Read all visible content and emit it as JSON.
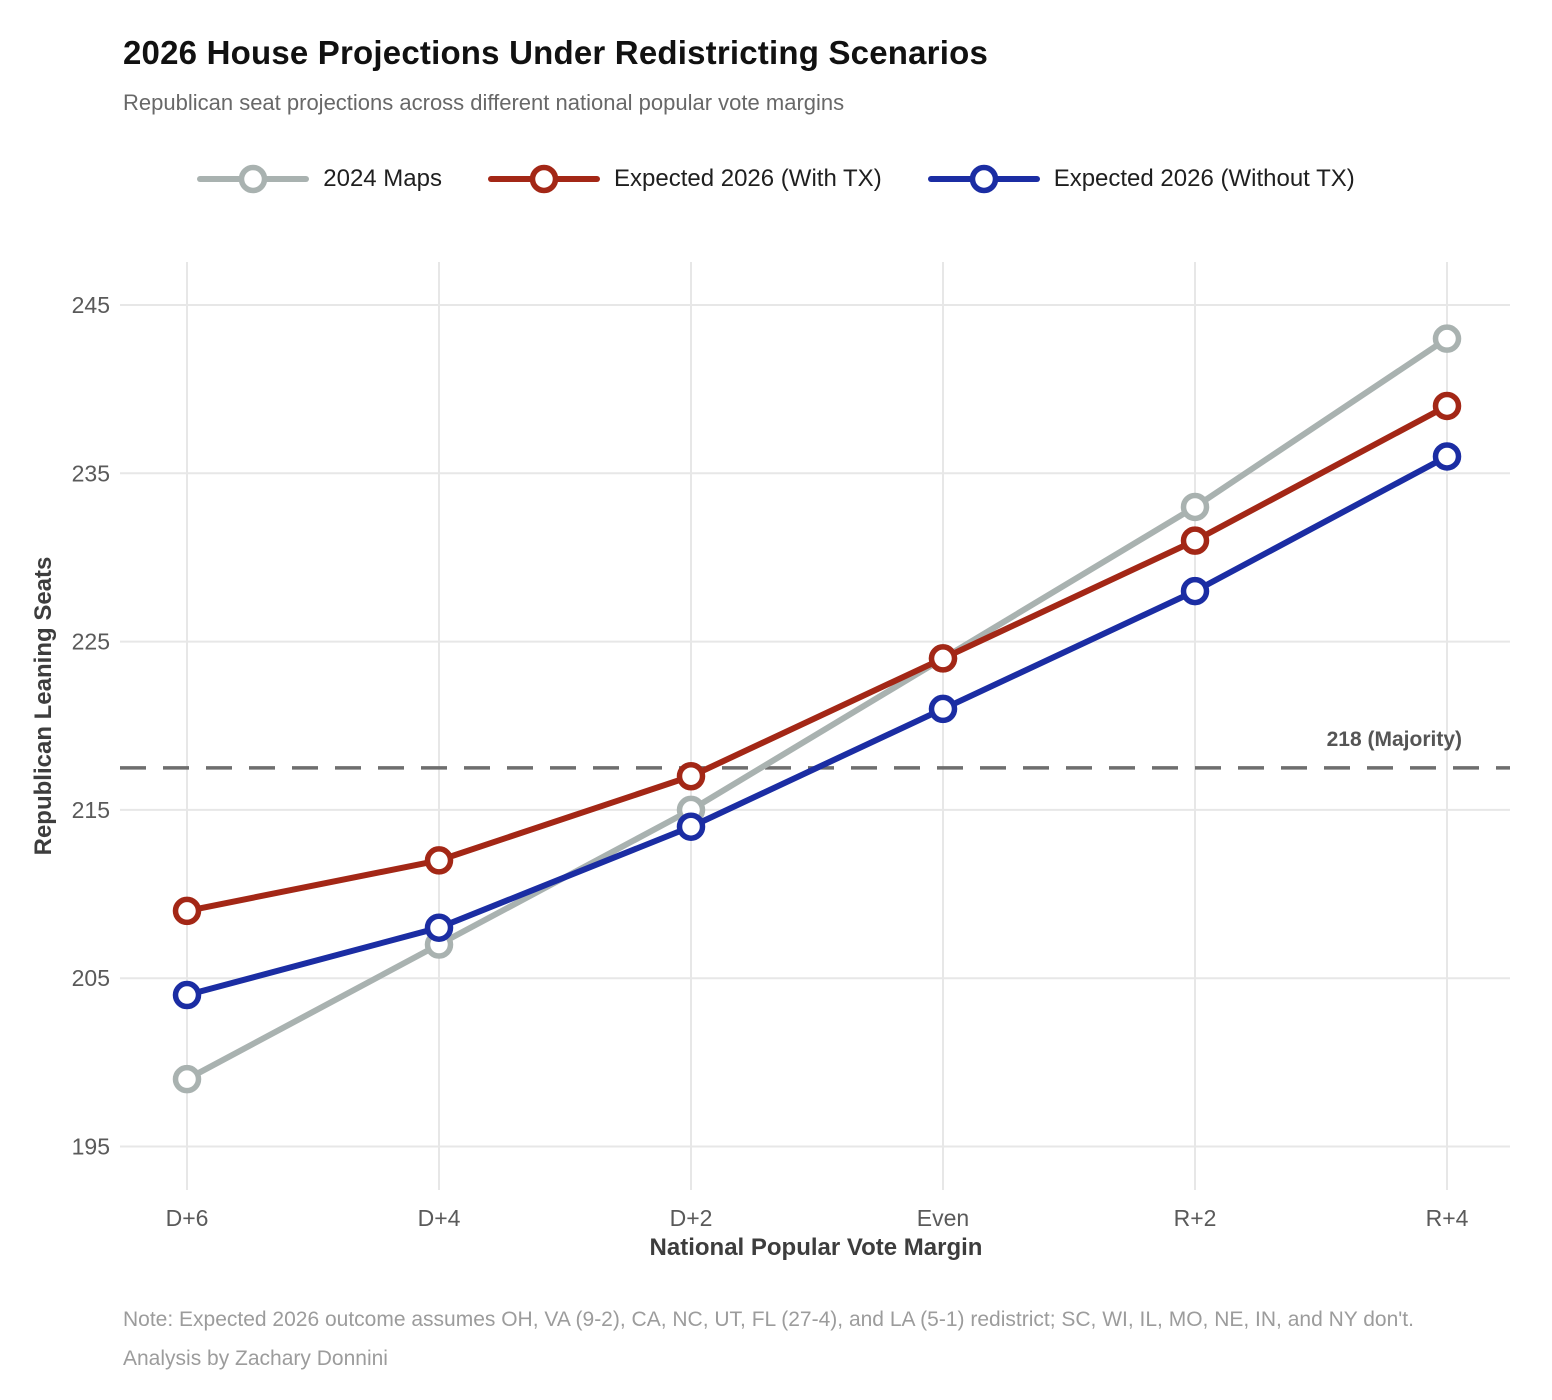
{
  "header": {
    "title": "2026 House Projections Under Redistricting Scenarios",
    "subtitle": "Republican seat projections across different national popular vote margins"
  },
  "chart_data": {
    "type": "line",
    "title": "2026 House Projections Under Redistricting Scenarios",
    "subtitle": "Republican seat projections across different national popular vote margins",
    "xlabel": "National Popular Vote Margin",
    "ylabel": "Republican Leaning Seats",
    "categories": [
      "D+6",
      "D+4",
      "D+2",
      "Even",
      "R+2",
      "R+4"
    ],
    "series": [
      {
        "name": "2024 Maps",
        "color": "#A9B2B0",
        "values": [
          199,
          207,
          215,
          224,
          233,
          243
        ]
      },
      {
        "name": "Expected 2026 (With TX)",
        "color": "#A32716",
        "values": [
          209,
          212,
          217,
          224,
          231,
          239
        ]
      },
      {
        "name": "Expected 2026 (Without TX)",
        "color": "#1B2DA3",
        "values": [
          204,
          208,
          214,
          221,
          228,
          236
        ]
      }
    ],
    "y_ticks": [
      195,
      205,
      215,
      225,
      235,
      245
    ],
    "ylim": [
      192.5,
      247.5
    ],
    "grid": true,
    "legend_position": "top",
    "reference_line": {
      "value": 217.5,
      "label": "218 (Majority)"
    }
  },
  "footer": {
    "note": "Note: Expected 2026 outcome assumes OH, VA (9-2), CA, NC, UT, FL (27-4), and LA (5-1) redistrict; SC, WI, IL, MO, NE, IN, and NY don't.",
    "credit": "Analysis by Zachary Donnini"
  }
}
